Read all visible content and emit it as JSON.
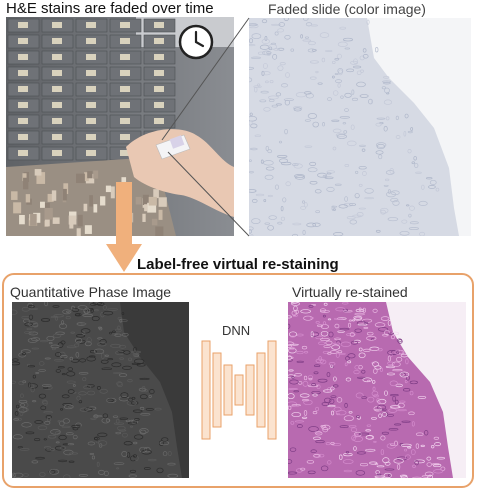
{
  "figure": {
    "archive_title": "H&E stains are faded over time",
    "faded_title": "Faded slide (color image)",
    "method_label": "Label-free virtual re-staining",
    "qpi_label": "Quantitative Phase Image",
    "restained_label": "Virtually re-stained",
    "network_label": "DNN"
  },
  "colors": {
    "accent": "#e8a26a",
    "arrow": "#f0b07c",
    "restained": "#b86ab0",
    "faded_tissue": "#d6dae4",
    "qpi_background": "#3a3a3a"
  },
  "icons": {
    "clock": "clock-icon",
    "hand": "hand-holding-slide"
  }
}
